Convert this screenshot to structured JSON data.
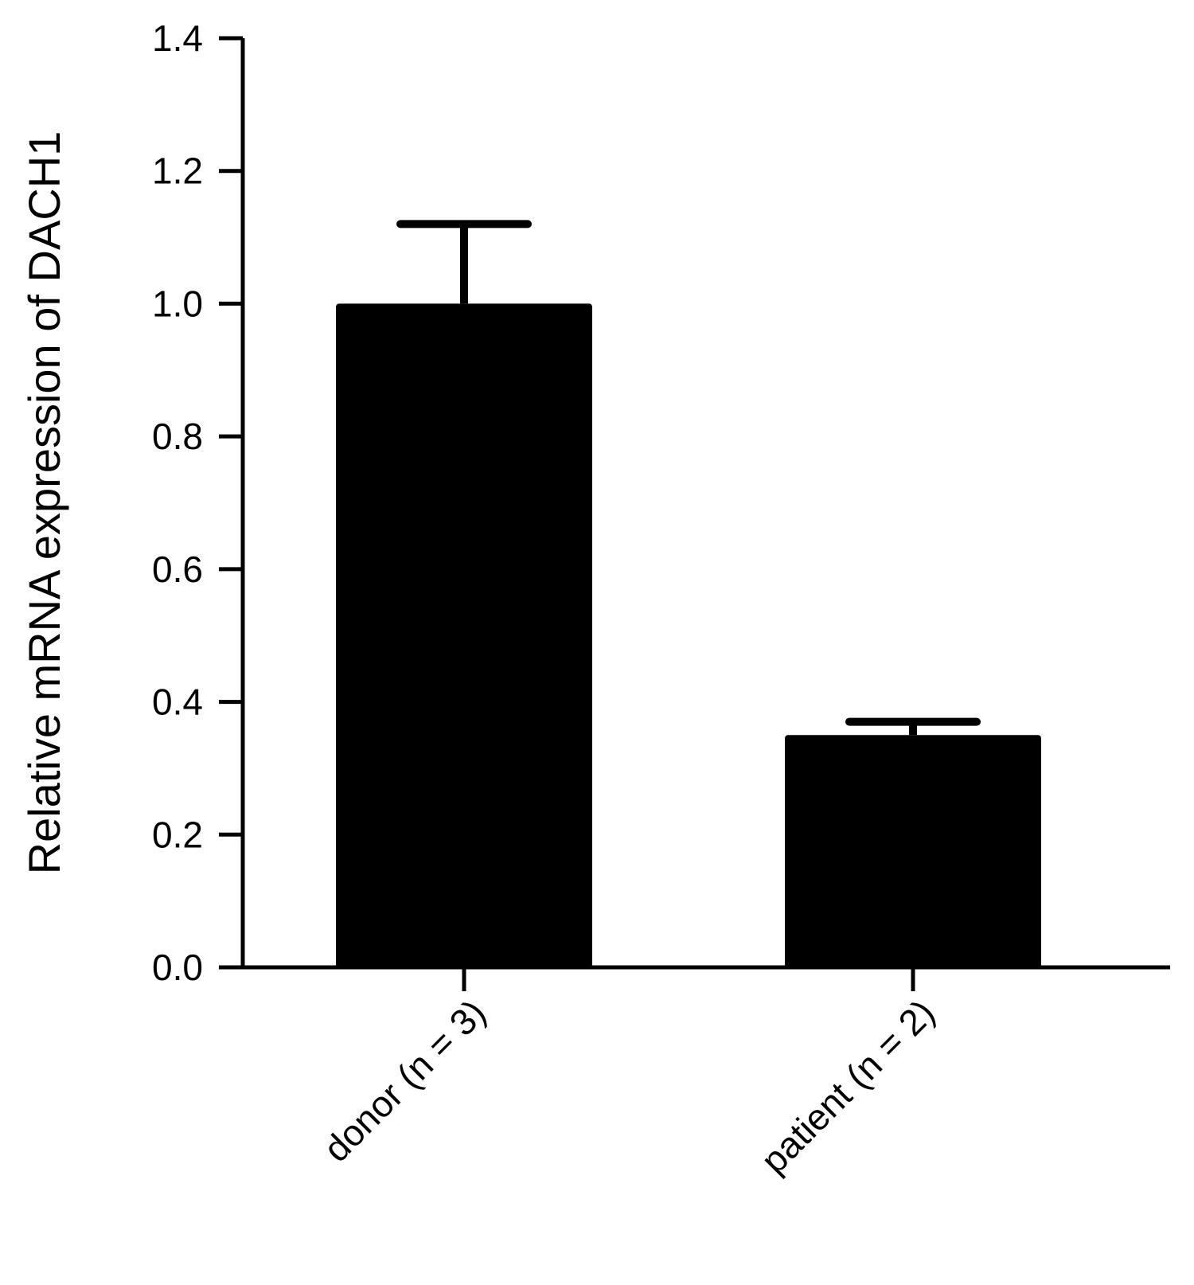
{
  "colors": {
    "bar": "#000000",
    "axis": "#000000",
    "background": "#ffffff"
  },
  "chart_data": {
    "type": "bar",
    "title": "",
    "xlabel": "",
    "ylabel": "Relative mRNA expression of DACH1",
    "categories": [
      "donor (n = 3)",
      "patient (n = 2)"
    ],
    "values": [
      1.0,
      0.35
    ],
    "error_bars": [
      0.12,
      0.02
    ],
    "ylim": [
      0.0,
      1.4
    ],
    "yticks": [
      0.0,
      0.2,
      0.4,
      0.6,
      0.8,
      1.0,
      1.2,
      1.4
    ],
    "ytick_labels": [
      "0.0",
      "0.2",
      "0.4",
      "0.6",
      "0.8",
      "1.0",
      "1.2",
      "1.4"
    ],
    "grid": false,
    "legend": "none"
  }
}
